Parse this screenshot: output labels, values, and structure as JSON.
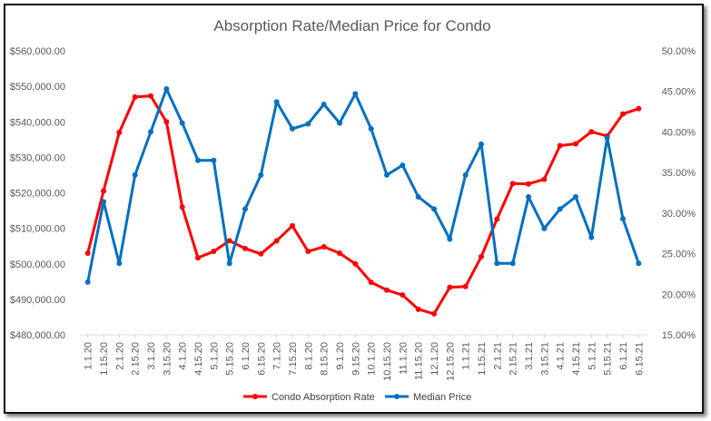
{
  "chart_data": {
    "type": "line",
    "title": "Absorption Rate/Median Price for Condo",
    "categories": [
      "1.1.20",
      "1.15.20",
      "2.1.20",
      "2.15.20",
      "3.1.20",
      "3.15.20",
      "4.1.20",
      "4.15.20",
      "5.1.20",
      "5.15.20",
      "6.1.20",
      "6.15.20",
      "7.1.20",
      "7.15.20",
      "8.1.20",
      "8.15.20",
      "9.1.20",
      "9.15.20",
      "10.1.20",
      "10.15.20",
      "11.1.20",
      "11.15.20",
      "12.1.20",
      "12.15.20",
      "1.1.21",
      "1.15.21",
      "2.1.21",
      "2.15.21",
      "3.1.21",
      "3.15.21",
      "4.1.21",
      "4.15.21",
      "5.1.21",
      "5.15.21",
      "6.1.21",
      "6.15.21"
    ],
    "y_left": {
      "ticks": [
        "$480,000.00",
        "$490,000.00",
        "$500,000.00",
        "$510,000.00",
        "$520,000.00",
        "$530,000.00",
        "$540,000.00",
        "$550,000.00",
        "$560,000.00"
      ],
      "range": [
        480000,
        560000
      ]
    },
    "y_right": {
      "ticks": [
        "15.00%",
        "20.00%",
        "25.00%",
        "30.00%",
        "35.00%",
        "40.00%",
        "45.00%",
        "50.00%"
      ],
      "range": [
        15,
        50
      ]
    },
    "grid": false,
    "legend_position": "bottom",
    "series": [
      {
        "name": "Condo Absorption Rate",
        "axis": "left",
        "color": "#ff0000",
        "values": [
          503000,
          520500,
          537000,
          547000,
          547300,
          540000,
          516000,
          501700,
          503500,
          506500,
          504300,
          502800,
          506500,
          510700,
          503500,
          504800,
          503000,
          500000,
          494800,
          492600,
          491200,
          487200,
          485900,
          493400,
          493600,
          502000,
          512600,
          522600,
          522500,
          523800,
          533300,
          533800,
          537200,
          536000,
          542200,
          543700
        ]
      },
      {
        "name": "Median Price",
        "axis": "right",
        "color": "#0070c0",
        "values": [
          21.5,
          31.4,
          23.8,
          34.7,
          40.0,
          45.3,
          41.1,
          36.5,
          36.5,
          23.8,
          30.5,
          34.7,
          43.7,
          40.4,
          41.0,
          43.4,
          41.1,
          44.7,
          40.4,
          34.7,
          35.9,
          32.0,
          30.5,
          26.8,
          34.7,
          38.5,
          23.8,
          23.8,
          32.0,
          28.1,
          30.5,
          32.0,
          27.0,
          39.3,
          29.3,
          23.8
        ]
      }
    ]
  }
}
